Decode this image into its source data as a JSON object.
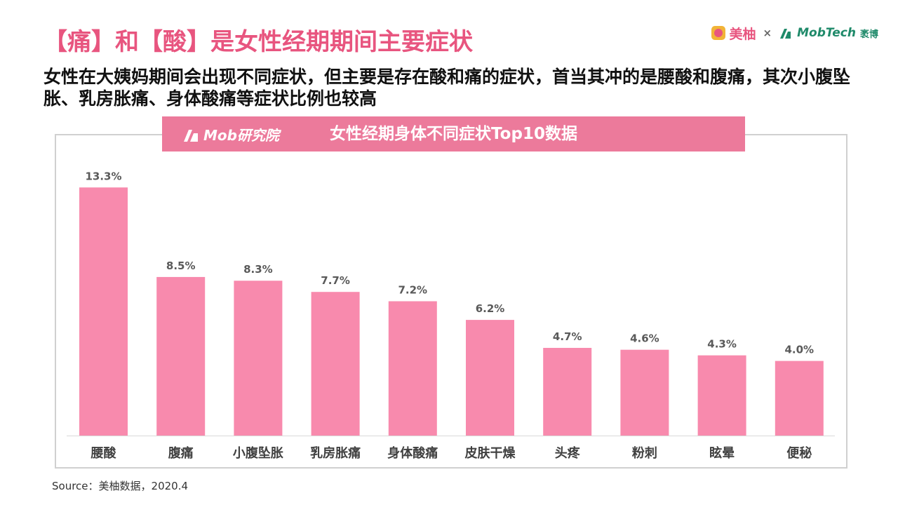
{
  "header": {
    "title": "【痛】和【酸】是女性经期期间主要症状",
    "subtitle": "女性在大姨妈期间会出现不同症状，但主要是存在酸和痛的症状，首当其冲的是腰酸和腹痛，其次小腹坠胀、乳房胀痛、身体酸痛等症状比例也较高"
  },
  "logos": {
    "meiyou": "美柚",
    "times": "×",
    "mobtech": "MobTech",
    "mobtech_cn": "袤博",
    "mob_research": "Mob研究院"
  },
  "colors": {
    "accent": "#e8557f",
    "bar": "#f88aad",
    "banner": "#ec7a9b"
  },
  "chart_data": {
    "type": "bar",
    "title": "女性经期身体不同症状Top10数据",
    "categories": [
      "腰酸",
      "腹痛",
      "小腹坠胀",
      "乳房胀痛",
      "身体酸痛",
      "皮肤干燥",
      "头疼",
      "粉刺",
      "眩晕",
      "便秘"
    ],
    "values": [
      13.3,
      8.5,
      8.3,
      7.7,
      7.2,
      6.2,
      4.7,
      4.6,
      4.3,
      4.0
    ],
    "data_labels": [
      "13.3%",
      "8.5%",
      "8.3%",
      "7.7%",
      "7.2%",
      "6.2%",
      "4.7%",
      "4.6%",
      "4.3%",
      "4.0%"
    ],
    "unit": "%",
    "ylim": [
      0,
      14.4
    ],
    "grid": false,
    "legend": "none"
  },
  "footer": {
    "source": "Source：美柚数据，2020.4"
  }
}
